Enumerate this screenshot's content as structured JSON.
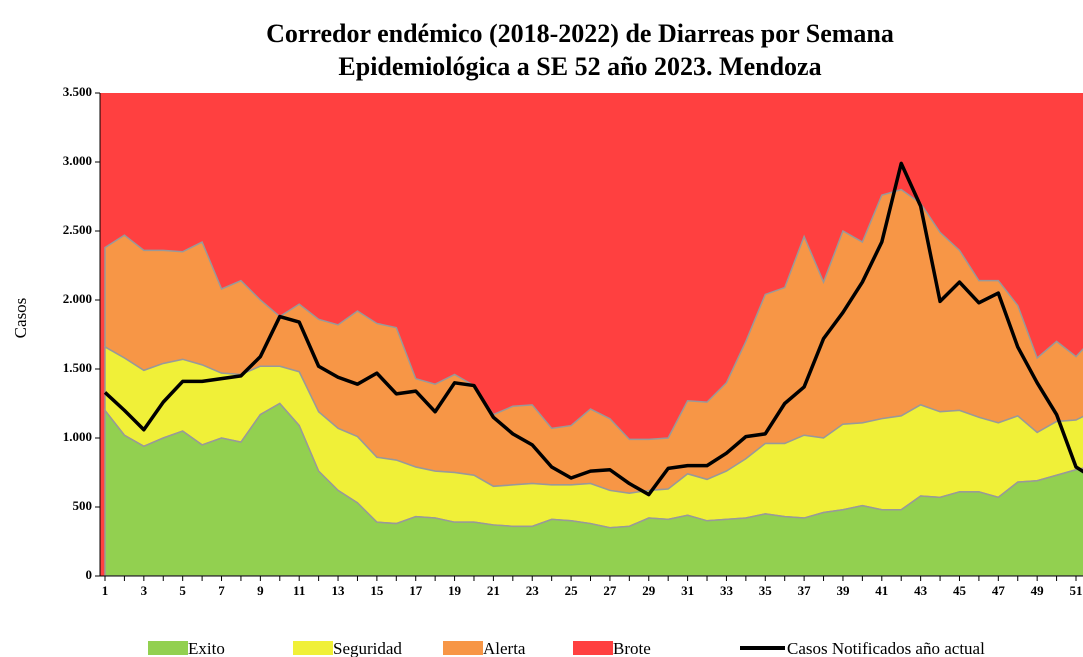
{
  "chart_data": {
    "type": "stacked_area_line",
    "title": "Corredor endémico  (2018-2022) de Diarreas por Semana",
    "subtitle": "Epidemiológica a SE 52  año 2023. Mendoza",
    "y_label": "Casos",
    "categories": [
      1,
      null,
      3,
      null,
      5,
      null,
      7,
      null,
      9,
      null,
      11,
      null,
      13,
      null,
      15,
      null,
      17,
      null,
      19,
      null,
      21,
      null,
      23,
      null,
      25,
      null,
      27,
      null,
      29,
      null,
      31,
      null,
      33,
      null,
      35,
      null,
      37,
      null,
      39,
      null,
      41,
      null,
      43,
      null,
      45,
      null,
      47,
      null,
      49,
      null,
      51,
      null
    ],
    "ylim": [
      0,
      3500
    ],
    "yticks": [
      0,
      500,
      {
        "value": 1000,
        "label": "1.000"
      },
      {
        "value": 1500,
        "label": "1.500"
      },
      {
        "value": 2000,
        "label": "2.000"
      },
      {
        "value": 2500,
        "label": "2.500"
      },
      {
        "value": 3000,
        "label": "3.000"
      },
      {
        "value": 3500,
        "label": "3.500"
      }
    ],
    "series": [
      {
        "name": "Exito",
        "color": "#92d050",
        "values": [
          1200,
          1020,
          940,
          1000,
          1050,
          950,
          1000,
          970,
          1170,
          1250,
          1090,
          760,
          620,
          530,
          390,
          380,
          430,
          420,
          390,
          390,
          370,
          360,
          360,
          410,
          400,
          380,
          350,
          360,
          420,
          410,
          440,
          400,
          410,
          420,
          450,
          430,
          420,
          460,
          480,
          510,
          480,
          480,
          580,
          570,
          610,
          610,
          570,
          680,
          690,
          730,
          770,
          800
        ]
      },
      {
        "name": "Seguridad",
        "color": "#f0f038",
        "values": [
          460,
          560,
          550,
          540,
          520,
          580,
          470,
          490,
          350,
          270,
          390,
          430,
          450,
          480,
          470,
          460,
          360,
          340,
          360,
          340,
          280,
          300,
          310,
          250,
          260,
          290,
          270,
          240,
          200,
          220,
          300,
          300,
          350,
          430,
          510,
          530,
          600,
          540,
          620,
          600,
          660,
          680,
          660,
          620,
          590,
          540,
          540,
          480,
          350,
          390,
          360,
          400
        ]
      },
      {
        "name": "Alerta",
        "color": "#f79646",
        "values": [
          720,
          890,
          870,
          820,
          780,
          890,
          610,
          680,
          480,
          360,
          490,
          670,
          750,
          910,
          970,
          960,
          640,
          630,
          710,
          650,
          520,
          570,
          570,
          410,
          430,
          540,
          520,
          390,
          370,
          370,
          530,
          560,
          640,
          850,
          1080,
          1130,
          1440,
          1130,
          1400,
          1310,
          1620,
          1640,
          1460,
          1300,
          1160,
          990,
          1030,
          800,
          540,
          580,
          460,
          540
        ]
      },
      {
        "name": "Brote",
        "color": "#ff4040"
      },
      {
        "name": "Casos Notificados año actual",
        "color": "#000000",
        "line": true,
        "values": [
          1330,
          1200,
          1060,
          1260,
          1410,
          1410,
          1430,
          1450,
          1590,
          1880,
          1840,
          1520,
          1440,
          1390,
          1470,
          1320,
          1340,
          1190,
          1400,
          1380,
          1150,
          1030,
          950,
          790,
          710,
          760,
          770,
          670,
          590,
          780,
          800,
          800,
          890,
          1010,
          1030,
          1250,
          1370,
          1720,
          1910,
          2130,
          2420,
          2990,
          2680,
          1990,
          2130,
          1980,
          2050,
          1660,
          1400,
          1170,
          790,
          700
        ]
      }
    ]
  }
}
